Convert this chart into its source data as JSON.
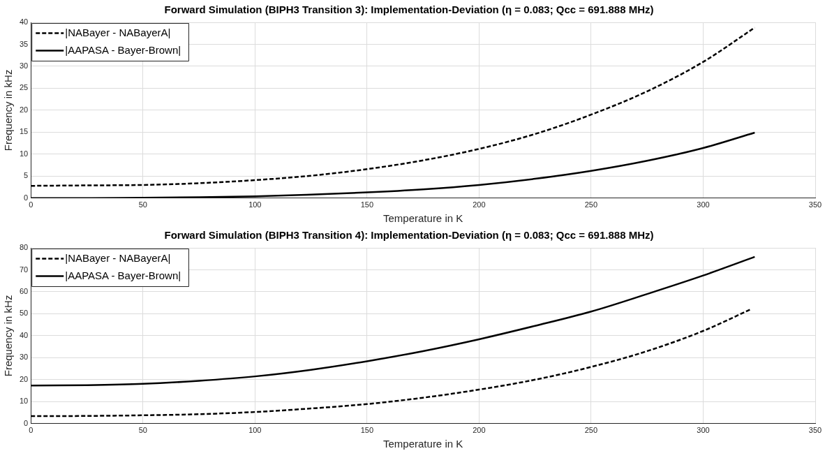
{
  "chart_data": [
    {
      "type": "line",
      "title": "Forward Simulation (BIPH3 Transition 3): Implementation-Deviation (η = 0.083; Qcc = 691.888 MHz)",
      "xlabel": "Temperature in K",
      "ylabel": "Frequency in kHz",
      "series": [
        {
          "name": "|NABayer - NABayerA|",
          "color": "#000000",
          "line_style": "dashed",
          "x": [
            0,
            25,
            50,
            75,
            100,
            125,
            150,
            175,
            200,
            225,
            250,
            275,
            300,
            323
          ],
          "values": [
            2.8,
            2.9,
            3.0,
            3.4,
            4.1,
            5.1,
            6.6,
            8.6,
            11.2,
            14.6,
            19.0,
            24.3,
            31.0,
            38.8
          ]
        },
        {
          "name": "|AAPASA - Bayer-Brown|",
          "color": "#000000",
          "line_style": "solid",
          "x": [
            0,
            25,
            50,
            75,
            100,
            125,
            150,
            175,
            200,
            225,
            250,
            275,
            300,
            323
          ],
          "values": [
            0,
            0,
            0.1,
            0.2,
            0.4,
            0.8,
            1.3,
            2.0,
            3.0,
            4.4,
            6.2,
            8.5,
            11.4,
            14.9
          ]
        }
      ],
      "xlim": [
        0,
        350
      ],
      "xticks": [
        0,
        50,
        100,
        150,
        200,
        250,
        300,
        350
      ],
      "ylim": [
        0,
        40
      ],
      "yticks": [
        0,
        5,
        10,
        15,
        20,
        25,
        30,
        35,
        40
      ],
      "grid": true,
      "legend": "top left"
    },
    {
      "type": "line",
      "title": "Forward Simulation (BIPH3 Transition 4): Implementation-Deviation (η = 0.083; Qcc = 691.888 MHz)",
      "xlabel": "Temperature in K",
      "ylabel": "Frequency in kHz",
      "series": [
        {
          "name": "|NABayer - NABayerA|",
          "color": "#000000",
          "line_style": "dashed",
          "x": [
            0,
            25,
            50,
            75,
            100,
            125,
            150,
            175,
            200,
            225,
            250,
            275,
            300,
            321
          ],
          "values": [
            3.4,
            3.5,
            3.8,
            4.3,
            5.3,
            6.9,
            8.9,
            11.8,
            15.5,
            20.0,
            25.8,
            33.0,
            42.2,
            51.9
          ]
        },
        {
          "name": "|AAPASA - Bayer-Brown|",
          "color": "#000000",
          "line_style": "solid",
          "x": [
            0,
            25,
            50,
            75,
            100,
            125,
            150,
            175,
            200,
            225,
            250,
            275,
            300,
            323
          ],
          "values": [
            17.3,
            17.5,
            18.1,
            19.5,
            21.5,
            24.5,
            28.4,
            33.0,
            38.4,
            44.5,
            51.0,
            59.0,
            67.4,
            75.9
          ]
        }
      ],
      "xlim": [
        0,
        350
      ],
      "xticks": [
        0,
        50,
        100,
        150,
        200,
        250,
        300,
        350
      ],
      "ylim": [
        0,
        80
      ],
      "yticks": [
        0,
        10,
        20,
        30,
        40,
        50,
        60,
        70,
        80
      ],
      "grid": true,
      "legend": "top left"
    }
  ]
}
